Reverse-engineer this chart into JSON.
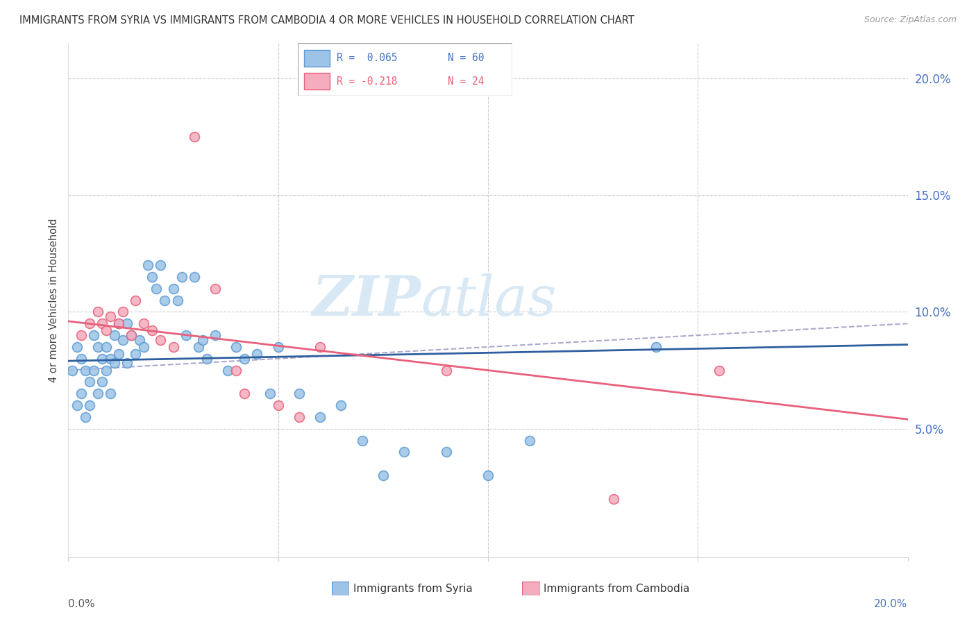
{
  "title": "IMMIGRANTS FROM SYRIA VS IMMIGRANTS FROM CAMBODIA 4 OR MORE VEHICLES IN HOUSEHOLD CORRELATION CHART",
  "source": "Source: ZipAtlas.com",
  "ylabel": "4 or more Vehicles in Household",
  "xlim": [
    0.0,
    0.2
  ],
  "ylim": [
    -0.005,
    0.215
  ],
  "syria_color": "#9DC3E6",
  "syria_edge_color": "#5B9BD5",
  "cambodia_color": "#F4ACBE",
  "cambodia_edge_color": "#E8607A",
  "syria_line_color": "#2F5F9E",
  "cambodia_line_color": "#E8607A",
  "dashed_line_color": "#AAAACC",
  "right_axis_color": "#4472C4",
  "watermark_color": "#D8E8F5",
  "syria_R": 0.065,
  "syria_N": 60,
  "cambodia_R": -0.218,
  "cambodia_N": 24,
  "syria_x": [
    0.001,
    0.002,
    0.002,
    0.003,
    0.003,
    0.004,
    0.004,
    0.005,
    0.005,
    0.006,
    0.006,
    0.007,
    0.007,
    0.008,
    0.008,
    0.009,
    0.009,
    0.01,
    0.01,
    0.011,
    0.011,
    0.012,
    0.012,
    0.013,
    0.014,
    0.014,
    0.015,
    0.016,
    0.017,
    0.018,
    0.019,
    0.02,
    0.021,
    0.022,
    0.023,
    0.025,
    0.026,
    0.027,
    0.028,
    0.03,
    0.031,
    0.032,
    0.033,
    0.035,
    0.038,
    0.04,
    0.042,
    0.045,
    0.048,
    0.05,
    0.055,
    0.06,
    0.065,
    0.07,
    0.075,
    0.08,
    0.09,
    0.1,
    0.11,
    0.14
  ],
  "syria_y": [
    0.075,
    0.085,
    0.06,
    0.08,
    0.065,
    0.075,
    0.055,
    0.07,
    0.06,
    0.09,
    0.075,
    0.085,
    0.065,
    0.08,
    0.07,
    0.085,
    0.075,
    0.08,
    0.065,
    0.09,
    0.078,
    0.095,
    0.082,
    0.088,
    0.095,
    0.078,
    0.09,
    0.082,
    0.088,
    0.085,
    0.12,
    0.115,
    0.11,
    0.12,
    0.105,
    0.11,
    0.105,
    0.115,
    0.09,
    0.115,
    0.085,
    0.088,
    0.08,
    0.09,
    0.075,
    0.085,
    0.08,
    0.082,
    0.065,
    0.085,
    0.065,
    0.055,
    0.06,
    0.045,
    0.03,
    0.04,
    0.04,
    0.03,
    0.045,
    0.085
  ],
  "cambodia_x": [
    0.003,
    0.005,
    0.007,
    0.008,
    0.009,
    0.01,
    0.012,
    0.013,
    0.015,
    0.016,
    0.018,
    0.02,
    0.022,
    0.025,
    0.03,
    0.035,
    0.04,
    0.042,
    0.05,
    0.055,
    0.06,
    0.09,
    0.13,
    0.155
  ],
  "cambodia_y": [
    0.09,
    0.095,
    0.1,
    0.095,
    0.092,
    0.098,
    0.095,
    0.1,
    0.09,
    0.105,
    0.095,
    0.092,
    0.088,
    0.085,
    0.175,
    0.11,
    0.075,
    0.065,
    0.06,
    0.055,
    0.085,
    0.075,
    0.02,
    0.075
  ]
}
